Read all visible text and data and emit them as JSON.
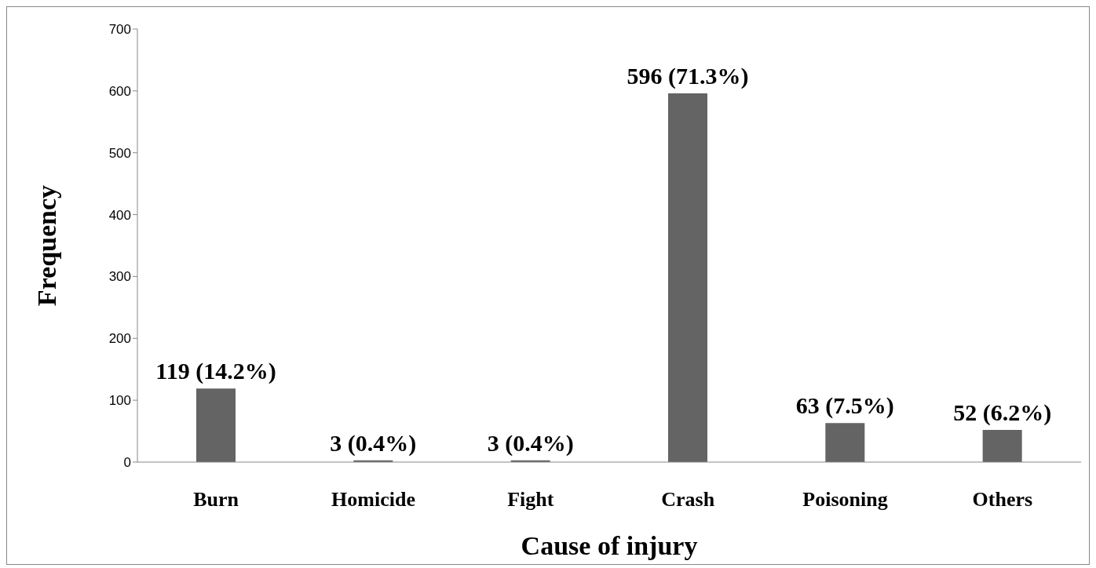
{
  "chart_data": {
    "type": "bar",
    "xlabel": "Cause of injury",
    "ylabel": "Frequency",
    "categories": [
      "Burn",
      "Homicide",
      "Fight",
      "Crash",
      "Poisoning",
      "Others"
    ],
    "values": [
      119,
      3,
      3,
      596,
      63,
      52
    ],
    "value_labels": [
      "119 (14.2%)",
      "3 (0.4%)",
      "3 (0.4%)",
      "596 (71.3%)",
      "63 (7.5%)",
      "52 (6.2%)"
    ],
    "color": "#646464",
    "ylim": [
      0,
      700
    ],
    "yticks": [
      0,
      100,
      200,
      300,
      400,
      500,
      600,
      700
    ],
    "grid": false,
    "legend": false
  }
}
